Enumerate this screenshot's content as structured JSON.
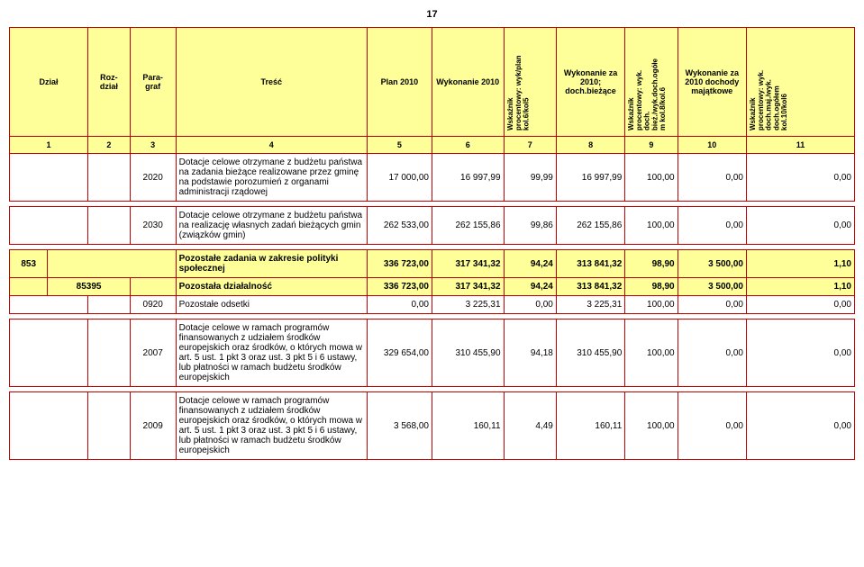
{
  "page_number": "17",
  "headers": {
    "dzial": "Dział",
    "rozdzial": "Roz-\ndział",
    "paragraf": "Para-\ngraf",
    "tresc": "Treść",
    "plan2010": "Plan 2010",
    "wykonanie2010": "Wykonanie  2010",
    "wsk1": "Wskaźnik\nprocentowy: wyk/plan\nkol.6/kol5",
    "wyk_za_2010": "Wykonanie za\n2010;\ndoch.bieżące",
    "wsk2": "Wskaźnik\nprocentowy: wyk.\ndoch.\nbież./wyk.doch.ogółe\nm kol.8/kol.6",
    "wyk_za_2010_maj": "Wykonanie za\n2010 dochody\nmajątkowe",
    "wsk3": "Wskaźnik\nprocentowy: wyk.\ndoch.maj./wyk.\ndoch.ogółem\nkol.10/kol6"
  },
  "colnums": [
    "1",
    "2",
    "3",
    "4",
    "5",
    "6",
    "7",
    "8",
    "9",
    "10",
    "11"
  ],
  "rows": [
    {
      "cls": "white",
      "paragraf": "2020",
      "tresc": "Dotacje celowe otrzymane z budżetu państwa na zadania bieżące realizowane przez gminę na podstawie porozumień z organami administracji rządowej",
      "v": [
        "17 000,00",
        "16 997,99",
        "99,99",
        "16 997,99",
        "100,00",
        "0,00",
        "0,00"
      ]
    },
    {
      "cls": "white",
      "paragraf": "2030",
      "tresc": "Dotacje celowe otrzymane z budżetu państwa na realizację własnych zadań bieżących gmin (związków gmin)",
      "v": [
        "262 533,00",
        "262 155,86",
        "99,86",
        "262 155,86",
        "100,00",
        "0,00",
        "0,00"
      ]
    },
    {
      "cls": "yellow",
      "dzial": "853",
      "tresc": "Pozostałe zadania w zakresie polityki społecznej",
      "v": [
        "336 723,00",
        "317 341,32",
        "94,24",
        "313 841,32",
        "98,90",
        "3 500,00",
        "1,10"
      ]
    },
    {
      "cls": "yellow",
      "rozdzial": "85395",
      "tresc": "Pozostała działalność",
      "v": [
        "336 723,00",
        "317 341,32",
        "94,24",
        "313 841,32",
        "98,90",
        "3 500,00",
        "1,10"
      ]
    },
    {
      "cls": "white",
      "paragraf": "0920",
      "tresc": "Pozostałe odsetki",
      "v": [
        "0,00",
        "3 225,31",
        "0,00",
        "3 225,31",
        "100,00",
        "0,00",
        "0,00"
      ]
    },
    {
      "cls": "white",
      "paragraf": "2007",
      "tresc": "Dotacje celowe w ramach programów finansowanych z udziałem środków europejskich oraz środków, o których mowa w art. 5 ust. 1 pkt 3 oraz ust. 3 pkt 5 i 6 ustawy, lub płatności w ramach budżetu środków europejskich",
      "v": [
        "329 654,00",
        "310 455,90",
        "94,18",
        "310 455,90",
        "100,00",
        "0,00",
        "0,00"
      ]
    },
    {
      "cls": "white",
      "paragraf": "2009",
      "tresc": "Dotacje celowe w ramach programów finansowanych z udziałem środków europejskich oraz środków, o których mowa w art. 5 ust. 1 pkt 3 oraz ust. 3 pkt 5 i 6 ustawy, lub płatności w ramach budżetu środków europejskich",
      "v": [
        "3 568,00",
        "160,11",
        "4,49",
        "160,11",
        "100,00",
        "0,00",
        "0,00"
      ]
    }
  ]
}
